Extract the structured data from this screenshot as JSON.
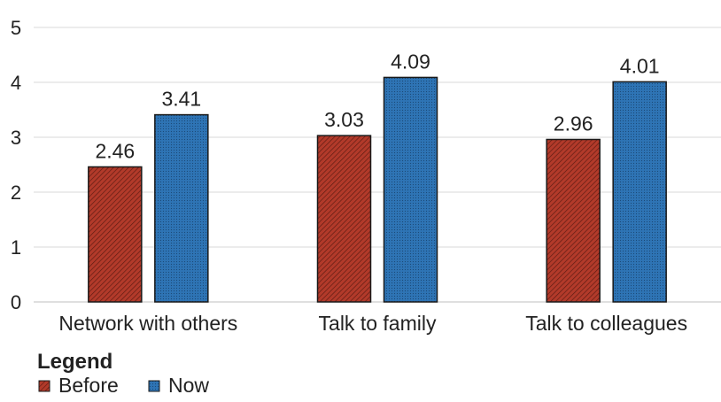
{
  "chart_data": {
    "type": "bar",
    "categories": [
      "Network with others",
      "Talk to family",
      "Talk to colleagues"
    ],
    "series": [
      {
        "name": "Before",
        "values": [
          2.46,
          3.03,
          2.96
        ],
        "color": "#b23a2a"
      },
      {
        "name": "Now",
        "values": [
          3.41,
          4.09,
          4.01
        ],
        "color": "#2e74b5"
      }
    ],
    "ylim": [
      0,
      5
    ],
    "yticks": [
      "0",
      "1",
      "2",
      "3",
      "4",
      "5"
    ],
    "grid": true,
    "legend": {
      "title": "Legend",
      "placement": "bottom-left"
    }
  }
}
